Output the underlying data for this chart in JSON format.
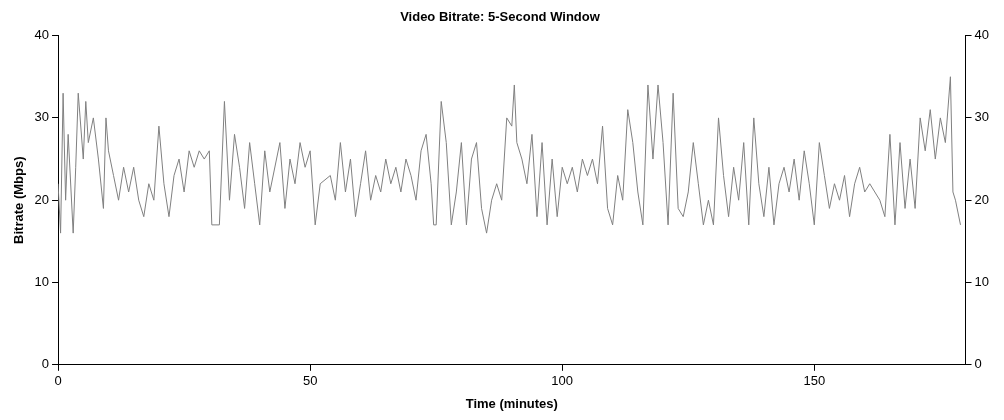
{
  "chart_data": {
    "type": "line",
    "title": "Video Bitrate: 5-Second Window",
    "xlabel": "Time (minutes)",
    "ylabel": "Bitrate (Mbps)",
    "xlim": [
      0,
      180
    ],
    "xticks": [
      0,
      50,
      100,
      150
    ],
    "ylim": [
      0,
      40
    ],
    "yticks": [
      0,
      10,
      20,
      30,
      40
    ],
    "y2lim": [
      0,
      40
    ],
    "y2ticks": [
      0,
      10,
      20,
      30,
      40
    ],
    "grid": false,
    "legend": false,
    "marker": "none",
    "line_style": "solid",
    "series": [
      {
        "color": "#808080",
        "x": [
          0,
          0.5,
          1,
          1.5,
          2,
          3,
          3.5,
          4,
          5,
          5.5,
          6,
          7,
          8,
          9,
          9.5,
          10,
          11,
          12,
          13,
          14,
          15,
          16,
          17,
          18,
          19,
          20,
          21,
          22,
          23,
          24,
          25,
          26,
          27,
          28,
          29,
          30,
          30.5,
          32,
          33,
          34,
          35,
          36,
          37,
          38,
          39,
          40,
          41,
          42,
          44,
          45,
          46,
          47,
          48,
          49,
          50,
          51,
          52,
          54,
          55,
          56,
          57,
          58,
          59,
          60,
          61,
          62,
          63,
          64,
          65,
          66,
          67,
          68,
          69,
          70,
          71,
          72,
          73,
          74,
          74.5,
          75,
          76,
          77,
          78,
          79,
          80,
          81,
          82,
          83,
          84,
          85,
          86,
          87,
          88,
          89,
          90,
          90.5,
          91,
          92,
          93,
          94,
          95,
          96,
          97,
          98,
          99,
          100,
          101,
          102,
          103,
          104,
          105,
          106,
          107,
          108,
          109,
          110,
          111,
          112,
          113,
          114,
          115,
          116,
          117,
          118,
          119,
          120,
          121,
          122,
          123,
          124,
          125,
          126,
          127,
          128,
          129,
          130,
          131,
          132,
          133,
          134,
          135,
          136,
          137,
          138,
          139,
          140,
          141,
          142,
          143,
          144,
          145,
          146,
          147,
          148,
          149,
          150,
          151,
          152,
          153,
          154,
          155,
          156,
          157,
          158,
          159,
          160,
          161,
          162,
          163,
          164,
          165,
          166,
          167,
          168,
          169,
          170,
          171,
          172,
          173,
          174,
          175,
          176,
          177,
          177.5,
          178,
          179
        ],
        "values": [
          22,
          16,
          33,
          20,
          28,
          16,
          24,
          33,
          25,
          32,
          27,
          30,
          25,
          19,
          30,
          26,
          23,
          20,
          24,
          21,
          24,
          20,
          18,
          22,
          20,
          29,
          22,
          18,
          23,
          25,
          21,
          26,
          24,
          26,
          25,
          26,
          17,
          17,
          32,
          20,
          28,
          24,
          19,
          27,
          22,
          17,
          26,
          21,
          27,
          19,
          25,
          22,
          27,
          24,
          26,
          17,
          22,
          23,
          20,
          27,
          21,
          25,
          18,
          22,
          26,
          20,
          23,
          21,
          25,
          22,
          24,
          21,
          25,
          23,
          20,
          26,
          28,
          22,
          17,
          17,
          32,
          27,
          17,
          21,
          27,
          17,
          25,
          27,
          19,
          16,
          20,
          22,
          20,
          30,
          29,
          34,
          27,
          25,
          22,
          28,
          18,
          27,
          17,
          25,
          18,
          24,
          22,
          24,
          21,
          25,
          23,
          25,
          22,
          29,
          19,
          17,
          23,
          20,
          31,
          27,
          21,
          17,
          34,
          25,
          34,
          27,
          17,
          33,
          19,
          18,
          21,
          27,
          22,
          17,
          20,
          17,
          30,
          23,
          18,
          24,
          20,
          27,
          17,
          30,
          22,
          18,
          24,
          17,
          22,
          24,
          21,
          25,
          20,
          26,
          22,
          17,
          27,
          23,
          19,
          22,
          20,
          23,
          18,
          22,
          24,
          21,
          22,
          21,
          20,
          18,
          28,
          17,
          27,
          19,
          25,
          19,
          30,
          26,
          31,
          25,
          30,
          27,
          35,
          21,
          20,
          17
        ]
      }
    ]
  }
}
